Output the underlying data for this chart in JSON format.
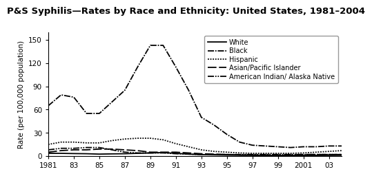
{
  "title": "P&S Syphilis—Rates by Race and Ethnicity: United States, 1981–2004",
  "ylabel": "Rate (per 100,000 population)",
  "years": [
    1981,
    1982,
    1983,
    1984,
    1985,
    1986,
    1987,
    1988,
    1989,
    1990,
    1991,
    1992,
    1993,
    1994,
    1995,
    1996,
    1997,
    1998,
    1999,
    2000,
    2001,
    2002,
    2003,
    2004
  ],
  "xtick_labels": [
    "1981",
    "83",
    "85",
    "87",
    "89",
    "91",
    "93",
    "95",
    "97",
    "99",
    "2001",
    "03"
  ],
  "xtick_positions": [
    1981,
    1983,
    1985,
    1987,
    1989,
    1991,
    1993,
    1995,
    1997,
    1999,
    2001,
    2003
  ],
  "ylim": [
    0,
    160
  ],
  "yticks": [
    0,
    30,
    60,
    90,
    120,
    150
  ],
  "white": [
    3.5,
    3.5,
    3.2,
    3.0,
    2.5,
    2.8,
    3.0,
    3.5,
    4.0,
    4.5,
    3.5,
    2.5,
    1.8,
    1.5,
    1.2,
    1.0,
    0.9,
    0.8,
    0.7,
    0.7,
    0.8,
    0.8,
    0.9,
    1.0
  ],
  "black": [
    65,
    79,
    76,
    55,
    55,
    70,
    85,
    115,
    143,
    143,
    115,
    85,
    50,
    40,
    28,
    18,
    14,
    13,
    12,
    11,
    12,
    12,
    13,
    13
  ],
  "hispanic": [
    15,
    18,
    18,
    17,
    17,
    20,
    22,
    23,
    23,
    21,
    16,
    12,
    8,
    6,
    5,
    4,
    3.5,
    3.5,
    3.5,
    3.5,
    4,
    5,
    6,
    7
  ],
  "asian_pi": [
    5,
    7,
    8,
    8,
    9,
    9,
    8,
    7,
    5,
    5,
    5,
    4,
    3,
    2.5,
    2,
    1.5,
    1.5,
    1.5,
    1.5,
    1.5,
    2,
    2,
    2,
    2
  ],
  "am_indian": [
    8,
    10,
    10,
    11,
    11,
    8,
    5,
    4,
    4,
    4,
    3,
    2.5,
    2,
    2,
    2,
    2,
    2,
    2,
    2,
    2,
    2,
    2,
    2,
    2
  ],
  "line_color": "#000000",
  "background_color": "#ffffff",
  "title_fontsize": 9.5,
  "label_fontsize": 7.5,
  "tick_fontsize": 7.5,
  "legend_fontsize": 7
}
